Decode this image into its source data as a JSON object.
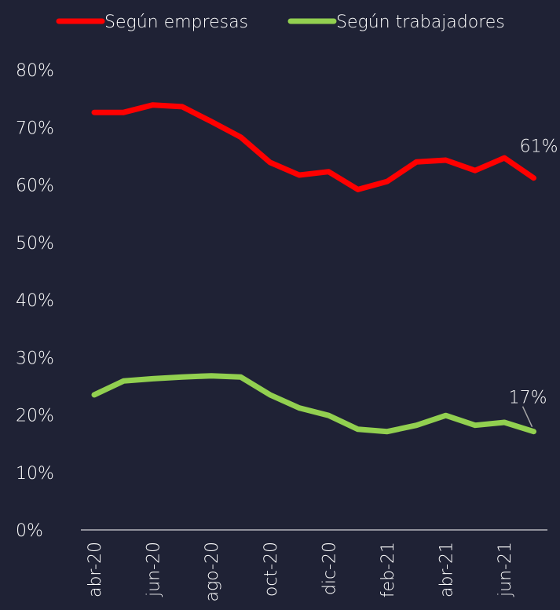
{
  "chart_data": {
    "type": "line",
    "categories": [
      "abr-20",
      null,
      "jun-20",
      null,
      "ago-20",
      null,
      "oct-20",
      null,
      "dic-20",
      null,
      "feb-21",
      null,
      "abr-21",
      null,
      "jun-21",
      null
    ],
    "series": [
      {
        "name": "Según empresas",
        "color": "#ff0000",
        "values": [
          72.6,
          72.6,
          73.9,
          73.6,
          71.0,
          68.3,
          63.9,
          61.7,
          62.3,
          59.2,
          60.6,
          64.0,
          64.3,
          62.5,
          64.7,
          61.2
        ],
        "value_labels": [
          null,
          null,
          null,
          null,
          null,
          null,
          null,
          null,
          null,
          null,
          null,
          null,
          null,
          null,
          null,
          "61%"
        ]
      },
      {
        "name": "Según trabajadores",
        "color": "#92d050",
        "values": [
          23.5,
          25.9,
          26.3,
          26.6,
          26.8,
          26.6,
          23.5,
          21.2,
          19.9,
          17.5,
          17.1,
          18.2,
          19.9,
          18.2,
          18.7,
          17.1
        ],
        "value_labels": [
          null,
          null,
          null,
          null,
          null,
          null,
          null,
          null,
          null,
          null,
          null,
          null,
          null,
          null,
          null,
          "17%"
        ]
      }
    ],
    "ylim": [
      0,
      80
    ],
    "yticks": [
      {
        "value": 0,
        "label": "0%"
      },
      {
        "value": 10,
        "label": "10%"
      },
      {
        "value": 20,
        "label": "20%"
      },
      {
        "value": 30,
        "label": "30%"
      },
      {
        "value": 40,
        "label": "40%"
      },
      {
        "value": 50,
        "label": "50%"
      },
      {
        "value": 60,
        "label": "60%"
      },
      {
        "value": 70,
        "label": "70%"
      },
      {
        "value": 80,
        "label": "80%"
      }
    ],
    "legend": "top"
  }
}
